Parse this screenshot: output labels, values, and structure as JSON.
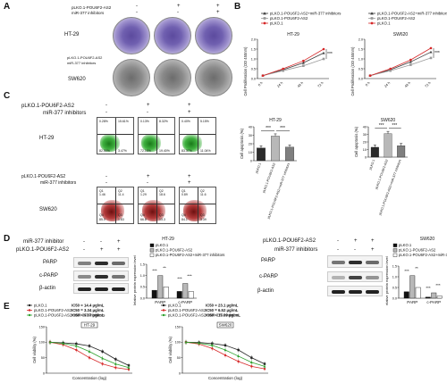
{
  "panels": {
    "A": "A",
    "B": "B",
    "C": "C",
    "D": "D",
    "E": "E"
  },
  "A": {
    "row1": "pLKO.1-POU6F2-AS2",
    "row2": "miR-377 inhibitors",
    "signs1": [
      "-",
      "+",
      "+"
    ],
    "signs2": [
      "-",
      "-",
      "+"
    ],
    "line1": "HT-29",
    "row3": "pLKO.1-POU6F2-AS2",
    "row4": "miR-377 inhibitors",
    "line2": "SW620"
  },
  "B": {
    "legend_left": [
      "pLKO.1-POU6F2-AS2+miR-377 inhibitors",
      "pLKO.1-POU6F2-AS2",
      "pLKO.1"
    ],
    "legend_right": [
      "pLKO.1-POU6F2-AS2+miR-377 inhibitors",
      "pLKO.1-POU6F2-AS2",
      "pLKO.1"
    ],
    "title_left": "HT-29",
    "title_right": "SW620",
    "ylabel": "Cell Proliferation (OD 450nm)",
    "xticks": [
      "0 h",
      "24 h",
      "48 h",
      "72 h"
    ],
    "yticks": [
      "0.0",
      "0.5",
      "1.0",
      "1.5",
      "2.0"
    ],
    "sig": "***"
  },
  "C": {
    "row1": "pLKO.1-POU6F2-AS2",
    "row2": "miR-377 inhibitors",
    "signs1": [
      "-",
      "+",
      "+"
    ],
    "signs2": [
      "-",
      "-",
      "+"
    ],
    "line1": "HT-29",
    "quads_ht29": [
      [
        "0.28%",
        "15.61%",
        "82.50%",
        "3.47%"
      ],
      [
        "0.13%",
        "8.32%",
        "72.15%",
        "19.40%"
      ],
      [
        "0.40%",
        "5.15%",
        "83.37%",
        "11.04%"
      ]
    ],
    "row3": "pLKO.1-POU6F2-AS2",
    "row4": "miR-377 inhibitors",
    "line2": "SW620",
    "q_labels": [
      "Q1",
      "Q2",
      "Q3",
      "Q4"
    ],
    "quads_sw620": [
      [
        "1.46",
        "11.4"
      ],
      [
        "1.29",
        "18.6"
      ],
      [
        "0.89",
        "11.6"
      ]
    ],
    "quads_sw620_bot": [
      [
        "85.0",
        "1.83"
      ],
      [
        "66.8",
        "13.3"
      ],
      [
        "84.1",
        "3.39"
      ]
    ],
    "bar_title_left": "HT-29",
    "bar_title_right": "SW620",
    "ylabel": "Cell apoptosis (%)",
    "bar_cats": [
      "pLKO.1",
      "pLKO.1-POU6F2-AS2",
      "pLKO.1-POU6F2-AS2+miR-377 inhibitors"
    ],
    "sig": "***",
    "yticks_left": [
      "0",
      "10",
      "20",
      "30",
      "40"
    ],
    "yticks_right": [
      "0",
      "10",
      "20",
      "30",
      "40"
    ]
  },
  "D": {
    "row1": "miR-377 inhibitor",
    "row2": "pLKO.1-POU6F2-AS2",
    "signs1": [
      "-",
      "-",
      "+"
    ],
    "signs2": [
      "-",
      "+",
      "+"
    ],
    "bands": [
      "PARP",
      "c-PARP",
      "β-actin"
    ],
    "title_left": "HT-29",
    "legend": [
      "pLKO.1",
      "pLKO.1-POU6F2-AS2",
      "pLKO.1-POU6F2-AS2+miR-377 inhibitors"
    ],
    "ylabel": "Relative protein expression level",
    "cats": [
      "PARP",
      "c-PARP"
    ],
    "right_row1": "pLKO.1-POU6F2-AS2",
    "right_row2": "miR-377 inhibitors",
    "rsigns1": [
      "-",
      "+",
      "+"
    ],
    "rsigns2": [
      "-",
      "-",
      "+"
    ],
    "title_right": "SW620",
    "sig3": "***",
    "sig2": "**",
    "yticks": [
      "0.0",
      "0.5",
      "1.0",
      "1.5"
    ]
  },
  "E": {
    "legend_left": [
      {
        "name": "pLKO.1",
        "ic50": "IC50 = 14.4 μg/mL"
      },
      {
        "name": "pLKO.1-POU6F2-AS2",
        "ic50": "IC50 = 3.34 μg/mL"
      },
      {
        "name": "pLKO.1-POU6F2-AS2+miR-377 inhibitors",
        "ic50": "IC50 = 9.67 μg/mL"
      }
    ],
    "legend_right": [
      {
        "name": "pLKO.1",
        "ic50": "IC50 = 23.1 μg/mL"
      },
      {
        "name": "pLKO.1-POU6F2-AS2",
        "ic50": "IC50 = 6.52 μg/mL"
      },
      {
        "name": "pLKO.1-POU6F2-AS2+miR-377 inhibitors",
        "ic50": "IC50 = 15.09 μg/mL"
      }
    ],
    "tag_left": "HT-29",
    "tag_right": "SW620",
    "ylabel": "Cell viability (%)",
    "xlabel": "Concentration (log)",
    "yticks": [
      "0",
      "50",
      "100",
      "150"
    ]
  },
  "colors": {
    "black": "#222222",
    "red": "#d62728",
    "green": "#2ca02c",
    "gray": "#9a9a9a",
    "dark": "#3a3a3a"
  },
  "chart_data": [
    {
      "type": "line",
      "title": "HT-29",
      "x": [
        "0 h",
        "24 h",
        "48 h",
        "72 h"
      ],
      "ylabel": "Cell Proliferation (OD 450nm)",
      "ylim": [
        0,
        2
      ],
      "series": [
        {
          "name": "pLKO.1-POU6F2-AS2+miR-377 inhibitors",
          "values": [
            0.15,
            0.45,
            0.8,
            1.3
          ]
        },
        {
          "name": "pLKO.1-POU6F2-AS2",
          "values": [
            0.15,
            0.4,
            0.65,
            1.0
          ]
        },
        {
          "name": "pLKO.1",
          "values": [
            0.15,
            0.5,
            0.9,
            1.5
          ]
        }
      ]
    },
    {
      "type": "line",
      "title": "SW620",
      "x": [
        "0 h",
        "24 h",
        "48 h",
        "72 h"
      ],
      "ylabel": "Cell Proliferation (OD 450nm)",
      "ylim": [
        0,
        2
      ],
      "series": [
        {
          "name": "pLKO.1-POU6F2-AS2+miR-377 inhibitors",
          "values": [
            0.15,
            0.45,
            0.85,
            1.35
          ]
        },
        {
          "name": "pLKO.1-POU6F2-AS2",
          "values": [
            0.15,
            0.4,
            0.7,
            1.05
          ]
        },
        {
          "name": "pLKO.1",
          "values": [
            0.15,
            0.5,
            0.95,
            1.55
          ]
        }
      ]
    },
    {
      "type": "bar",
      "title": "HT-29",
      "categories": [
        "pLKO.1",
        "pLKO.1-POU6F2-AS2",
        "pLKO.1-POU6F2-AS2+miR-377 inhibitors"
      ],
      "values": [
        15,
        29,
        16
      ],
      "ylabel": "Cell apoptosis (%)",
      "ylim": [
        0,
        40
      ]
    },
    {
      "type": "bar",
      "title": "SW620",
      "categories": [
        "pLKO.1",
        "pLKO.1-POU6F2-AS2",
        "pLKO.1-POU6F2-AS2+miR-377 inhibitors"
      ],
      "values": [
        13,
        31,
        15
      ],
      "ylabel": "Cell apoptosis (%)",
      "ylim": [
        0,
        40
      ]
    },
    {
      "type": "bar",
      "title": "HT-29",
      "categories": [
        "PARP",
        "c-PARP"
      ],
      "ylabel": "Relative protein expression level",
      "ylim": [
        0,
        1.5
      ],
      "series": [
        {
          "name": "pLKO.1",
          "values": [
            0.35,
            0.3
          ]
        },
        {
          "name": "pLKO.1-POU6F2-AS2",
          "values": [
            1.0,
            0.65
          ]
        },
        {
          "name": "pLKO.1-POU6F2-AS2+miR-377 inhibitors",
          "values": [
            0.5,
            0.3
          ]
        }
      ]
    },
    {
      "type": "bar",
      "title": "SW620",
      "categories": [
        "PARP",
        "c-PARP"
      ],
      "ylabel": "Relative protein expression level",
      "ylim": [
        0,
        1.5
      ],
      "series": [
        {
          "name": "pLKO.1",
          "values": [
            0.3,
            0.05
          ]
        },
        {
          "name": "pLKO.1-POU6F2-AS2",
          "values": [
            1.05,
            0.25
          ]
        },
        {
          "name": "pLKO.1-POU6F2-AS2+miR-377 inhibitors",
          "values": [
            0.5,
            0.1
          ]
        }
      ]
    },
    {
      "type": "line",
      "title": "HT-29",
      "xlabel": "Concentration (log)",
      "ylabel": "Cell viability (%)",
      "ylim": [
        0,
        150
      ],
      "x": [
        0,
        0.5,
        1,
        1.5,
        2,
        2.5,
        3
      ],
      "series": [
        {
          "name": "pLKO.1",
          "values": [
            100,
            98,
            95,
            88,
            70,
            45,
            25
          ]
        },
        {
          "name": "pLKO.1-POU6F2-AS2",
          "values": [
            100,
            92,
            75,
            50,
            30,
            18,
            12
          ]
        },
        {
          "name": "pLKO.1-POU6F2-AS2+miR-377 inhibitors",
          "values": [
            100,
            96,
            88,
            70,
            48,
            30,
            18
          ]
        }
      ]
    },
    {
      "type": "line",
      "title": "SW620",
      "xlabel": "Concentration (log)",
      "ylabel": "Cell viability (%)",
      "ylim": [
        0,
        150
      ],
      "x": [
        0,
        0.5,
        1,
        1.5,
        2,
        2.5,
        3
      ],
      "series": [
        {
          "name": "pLKO.1",
          "values": [
            100,
            99,
            96,
            90,
            75,
            50,
            30
          ]
        },
        {
          "name": "pLKO.1-POU6F2-AS2",
          "values": [
            100,
            94,
            80,
            58,
            38,
            22,
            14
          ]
        },
        {
          "name": "pLKO.1-POU6F2-AS2+miR-377 inhibitors",
          "values": [
            100,
            97,
            90,
            75,
            55,
            35,
            22
          ]
        }
      ]
    }
  ]
}
